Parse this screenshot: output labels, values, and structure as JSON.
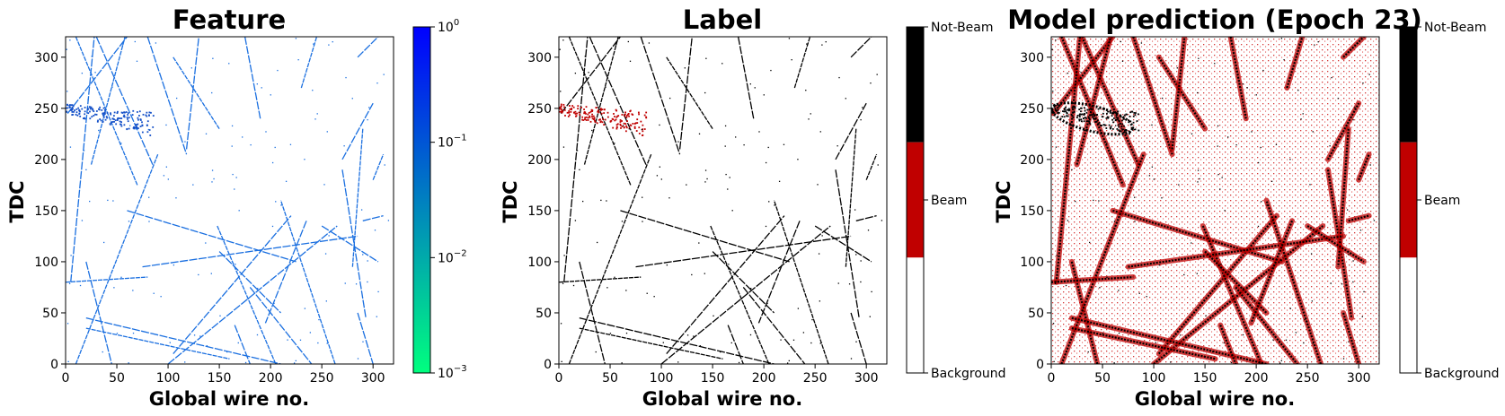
{
  "chart_data": [
    {
      "type": "heatmap",
      "title": "Feature",
      "xlabel": "Global wire no.",
      "ylabel": "TDC",
      "xlim": [
        0,
        320
      ],
      "ylim": [
        0,
        320
      ],
      "xticks": [
        "0",
        "50",
        "100",
        "150",
        "200",
        "250",
        "300"
      ],
      "yticks": [
        "0",
        "50",
        "100",
        "150",
        "200",
        "250",
        "300"
      ],
      "colorbar": {
        "scale": "log",
        "range": [
          0.001,
          1
        ],
        "colors": [
          "#00ff7f",
          "#0000ff"
        ],
        "ticks": [
          {
            "base": "10",
            "exp": "0"
          },
          {
            "base": "10",
            "exp": "−1"
          },
          {
            "base": "10",
            "exp": "−2"
          },
          {
            "base": "10",
            "exp": "−3"
          }
        ]
      },
      "track_color": "#1a6fe0",
      "blob_color": "#1450c8"
    },
    {
      "type": "heatmap",
      "title": "Label",
      "xlabel": "Global wire no.",
      "ylabel": "TDC",
      "xlim": [
        0,
        320
      ],
      "ylim": [
        0,
        320
      ],
      "xticks": [
        "0",
        "50",
        "100",
        "150",
        "200",
        "250",
        "300"
      ],
      "yticks": [
        "0",
        "50",
        "100",
        "150",
        "200",
        "250",
        "300"
      ],
      "colorbar": {
        "scale": "categorical",
        "categories": [
          "Not-Beam",
          "Beam",
          "Background"
        ],
        "colors": [
          "#000000",
          "#c00000",
          "#ffffff"
        ]
      }
    },
    {
      "type": "heatmap",
      "title": "Model prediction (Epoch 23)",
      "xlabel": "Global wire no.",
      "ylabel": "TDC",
      "xlim": [
        0,
        320
      ],
      "ylim": [
        0,
        320
      ],
      "xticks": [
        "0",
        "50",
        "100",
        "150",
        "200",
        "250",
        "300"
      ],
      "yticks": [
        "0",
        "50",
        "100",
        "150",
        "200",
        "250",
        "300"
      ],
      "colorbar": {
        "scale": "categorical",
        "categories": [
          "Not-Beam",
          "Beam",
          "Background"
        ],
        "colors": [
          "#000000",
          "#c00000",
          "#ffffff"
        ]
      }
    }
  ],
  "tracks": [
    [
      10,
      320,
      70,
      175
    ],
    [
      2,
      245,
      60,
      320
    ],
    [
      30,
      320,
      85,
      195
    ],
    [
      25,
      195,
      58,
      320
    ],
    [
      5,
      80,
      28,
      320
    ],
    [
      80,
      320,
      118,
      205
    ],
    [
      105,
      300,
      150,
      230
    ],
    [
      118,
      210,
      130,
      320
    ],
    [
      175,
      320,
      190,
      240
    ],
    [
      230,
      270,
      245,
      320
    ],
    [
      270,
      200,
      300,
      255
    ],
    [
      285,
      300,
      305,
      320
    ],
    [
      300,
      180,
      310,
      205
    ],
    [
      290,
      140,
      310,
      145
    ],
    [
      270,
      190,
      293,
      45
    ],
    [
      290,
      230,
      280,
      95
    ],
    [
      60,
      150,
      225,
      100
    ],
    [
      20,
      100,
      45,
      0
    ],
    [
      10,
      0,
      90,
      205
    ],
    [
      100,
      0,
      265,
      135
    ],
    [
      105,
      10,
      220,
      145
    ],
    [
      148,
      135,
      205,
      0
    ],
    [
      180,
      75,
      240,
      0
    ],
    [
      75,
      95,
      285,
      125
    ],
    [
      0,
      80,
      80,
      85
    ],
    [
      250,
      135,
      305,
      100
    ],
    [
      20,
      45,
      210,
      0
    ],
    [
      20,
      35,
      160,
      5
    ],
    [
      150,
      110,
      210,
      50
    ],
    [
      165,
      38,
      180,
      0
    ],
    [
      263,
      0,
      210,
      160
    ],
    [
      235,
      140,
      195,
      40
    ],
    [
      285,
      50,
      300,
      0
    ]
  ],
  "beam_blob": {
    "x": [
      0,
      85
    ],
    "y": [
      225,
      258
    ]
  }
}
